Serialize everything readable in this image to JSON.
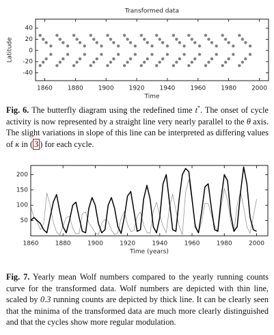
{
  "chart_data": [
    {
      "type": "scatter",
      "title": "Transformed data",
      "xlabel": "Time",
      "ylabel": "Latitude",
      "x": [
        1857,
        1857,
        1859,
        1859,
        1861,
        1861,
        1864,
        1864,
        1868,
        1868,
        1870,
        1870,
        1872,
        1872,
        1875,
        1875,
        1879,
        1879,
        1881,
        1881,
        1883,
        1883,
        1886,
        1886,
        1890,
        1890,
        1892,
        1892,
        1894,
        1894,
        1897,
        1897,
        1901,
        1901,
        1903,
        1903,
        1905,
        1905,
        1908,
        1908,
        1912,
        1912,
        1914,
        1914,
        1916,
        1916,
        1919,
        1919,
        1923,
        1923,
        1925,
        1925,
        1927,
        1927,
        1930,
        1930,
        1933,
        1933,
        1935,
        1935,
        1937,
        1937,
        1940,
        1940,
        1944,
        1944,
        1946,
        1946,
        1948,
        1948,
        1951,
        1951,
        1954,
        1954,
        1956,
        1956,
        1958,
        1958,
        1961,
        1961,
        1965,
        1965,
        1967,
        1967,
        1969,
        1969,
        1972,
        1972,
        1976,
        1976,
        1978,
        1978,
        1980,
        1980,
        1983,
        1983,
        1987,
        1987,
        1989,
        1989,
        1991,
        1991,
        1994,
        1994
      ],
      "y": [
        27,
        -27,
        20,
        -21,
        14,
        -15,
        8,
        -7,
        27,
        -27,
        20,
        -21,
        14,
        -15,
        8,
        -7,
        27,
        -27,
        20,
        -21,
        14,
        -15,
        8,
        -7,
        27,
        -27,
        20,
        -21,
        14,
        -15,
        8,
        -7,
        27,
        -27,
        20,
        -21,
        14,
        -15,
        8,
        -7,
        27,
        -27,
        20,
        -21,
        14,
        -15,
        8,
        -7,
        27,
        -27,
        20,
        -21,
        14,
        -15,
        8,
        -7,
        27,
        -27,
        20,
        -21,
        14,
        -15,
        8,
        -7,
        27,
        -27,
        20,
        -21,
        14,
        -15,
        8,
        -7,
        27,
        -27,
        20,
        -21,
        14,
        -15,
        8,
        -7,
        27,
        -27,
        20,
        -21,
        14,
        -15,
        8,
        -7,
        27,
        -27,
        20,
        -21,
        14,
        -15,
        8,
        -7,
        27,
        -27,
        20,
        -21,
        14,
        -15,
        8,
        -7
      ],
      "color": "#555555",
      "xlim": [
        1854,
        2006
      ],
      "xticks": [
        1860,
        1880,
        1900,
        1920,
        1940,
        1960,
        1980,
        2000
      ],
      "ylim": [
        -54,
        56
      ],
      "yticks": [
        -40,
        -20,
        0,
        20,
        40
      ]
    },
    {
      "type": "line",
      "xlabel": "Time (years)",
      "x": [
        1860,
        1862,
        1864,
        1866,
        1868,
        1870,
        1872,
        1874,
        1876,
        1878,
        1880,
        1882,
        1884,
        1886,
        1888,
        1890,
        1892,
        1894,
        1896,
        1898,
        1900,
        1902,
        1904,
        1906,
        1908,
        1910,
        1912,
        1914,
        1916,
        1918,
        1920,
        1922,
        1924,
        1926,
        1928,
        1930,
        1932,
        1934,
        1936,
        1938,
        1940,
        1942,
        1944,
        1946,
        1948,
        1950,
        1952,
        1954,
        1956,
        1958,
        1960,
        1962,
        1964,
        1966,
        1968,
        1970,
        1972,
        1974,
        1976,
        1978,
        1980,
        1982,
        1984,
        1986,
        1988,
        1990,
        1992,
        1994,
        1996,
        1998,
        2000
      ],
      "series": [
        {
          "color": "#888888",
          "values": [
            95,
            60,
            45,
            20,
            40,
            140,
            100,
            45,
            12,
            3,
            32,
            60,
            64,
            25,
            7,
            7,
            73,
            78,
            42,
            27,
            10,
            5,
            42,
            54,
            48,
            19,
            4,
            10,
            57,
            80,
            38,
            14,
            17,
            64,
            78,
            36,
            11,
            9,
            80,
            110,
            68,
            31,
            10,
            93,
            136,
            84,
            32,
            4,
            142,
            185,
            112,
            38,
            10,
            47,
            106,
            105,
            69,
            34,
            13,
            93,
            155,
            116,
            46,
            14,
            100,
            143,
            95,
            30,
            9,
            64,
            120
          ]
        },
        {
          "color": "#000000",
          "values": [
            50,
            60,
            50,
            40,
            20,
            10,
            60,
            110,
            135,
            80,
            30,
            10,
            50,
            100,
            110,
            60,
            15,
            10,
            90,
            125,
            100,
            40,
            10,
            20,
            100,
            125,
            90,
            30,
            8,
            60,
            130,
            145,
            80,
            15,
            20,
            120,
            165,
            120,
            30,
            10,
            60,
            170,
            200,
            110,
            20,
            15,
            120,
            200,
            220,
            210,
            120,
            30,
            10,
            80,
            160,
            170,
            90,
            20,
            15,
            120,
            200,
            180,
            70,
            15,
            30,
            140,
            225,
            170,
            60,
            20,
            15
          ]
        }
      ],
      "xlim": [
        1860,
        2007
      ],
      "xticks": [
        1860,
        1880,
        1900,
        1920,
        1940,
        1960,
        1980,
        2000
      ],
      "ylim": [
        0,
        230
      ],
      "yticks": [
        50,
        100,
        150,
        200
      ]
    }
  ],
  "captions": [
    {
      "label": "Fig. 6.",
      "parts": [
        "The butterfly diagram using the redefined time ",
        "t",
        "*",
        ". The onset of cycle activity is now represented by a straight line very nearly parallel to the ",
        "θ",
        " axis. The slight variations in slope of this line can be interpreted as differing values of ",
        "κ",
        " in (",
        "3",
        ") for each cycle."
      ]
    },
    {
      "label": "Fig. 7.",
      "parts": [
        "Yearly mean Wolf numbers compared to the yearly running counts curve for the transformed data. Wolf numbers are depicted with thin line, scaled by ",
        "0.3",
        " running counts are depicted by thick line. It can be clearly seen that the minima of the transformed data are much more clearly distinguished and that the cycles show more regular modulation."
      ]
    }
  ]
}
